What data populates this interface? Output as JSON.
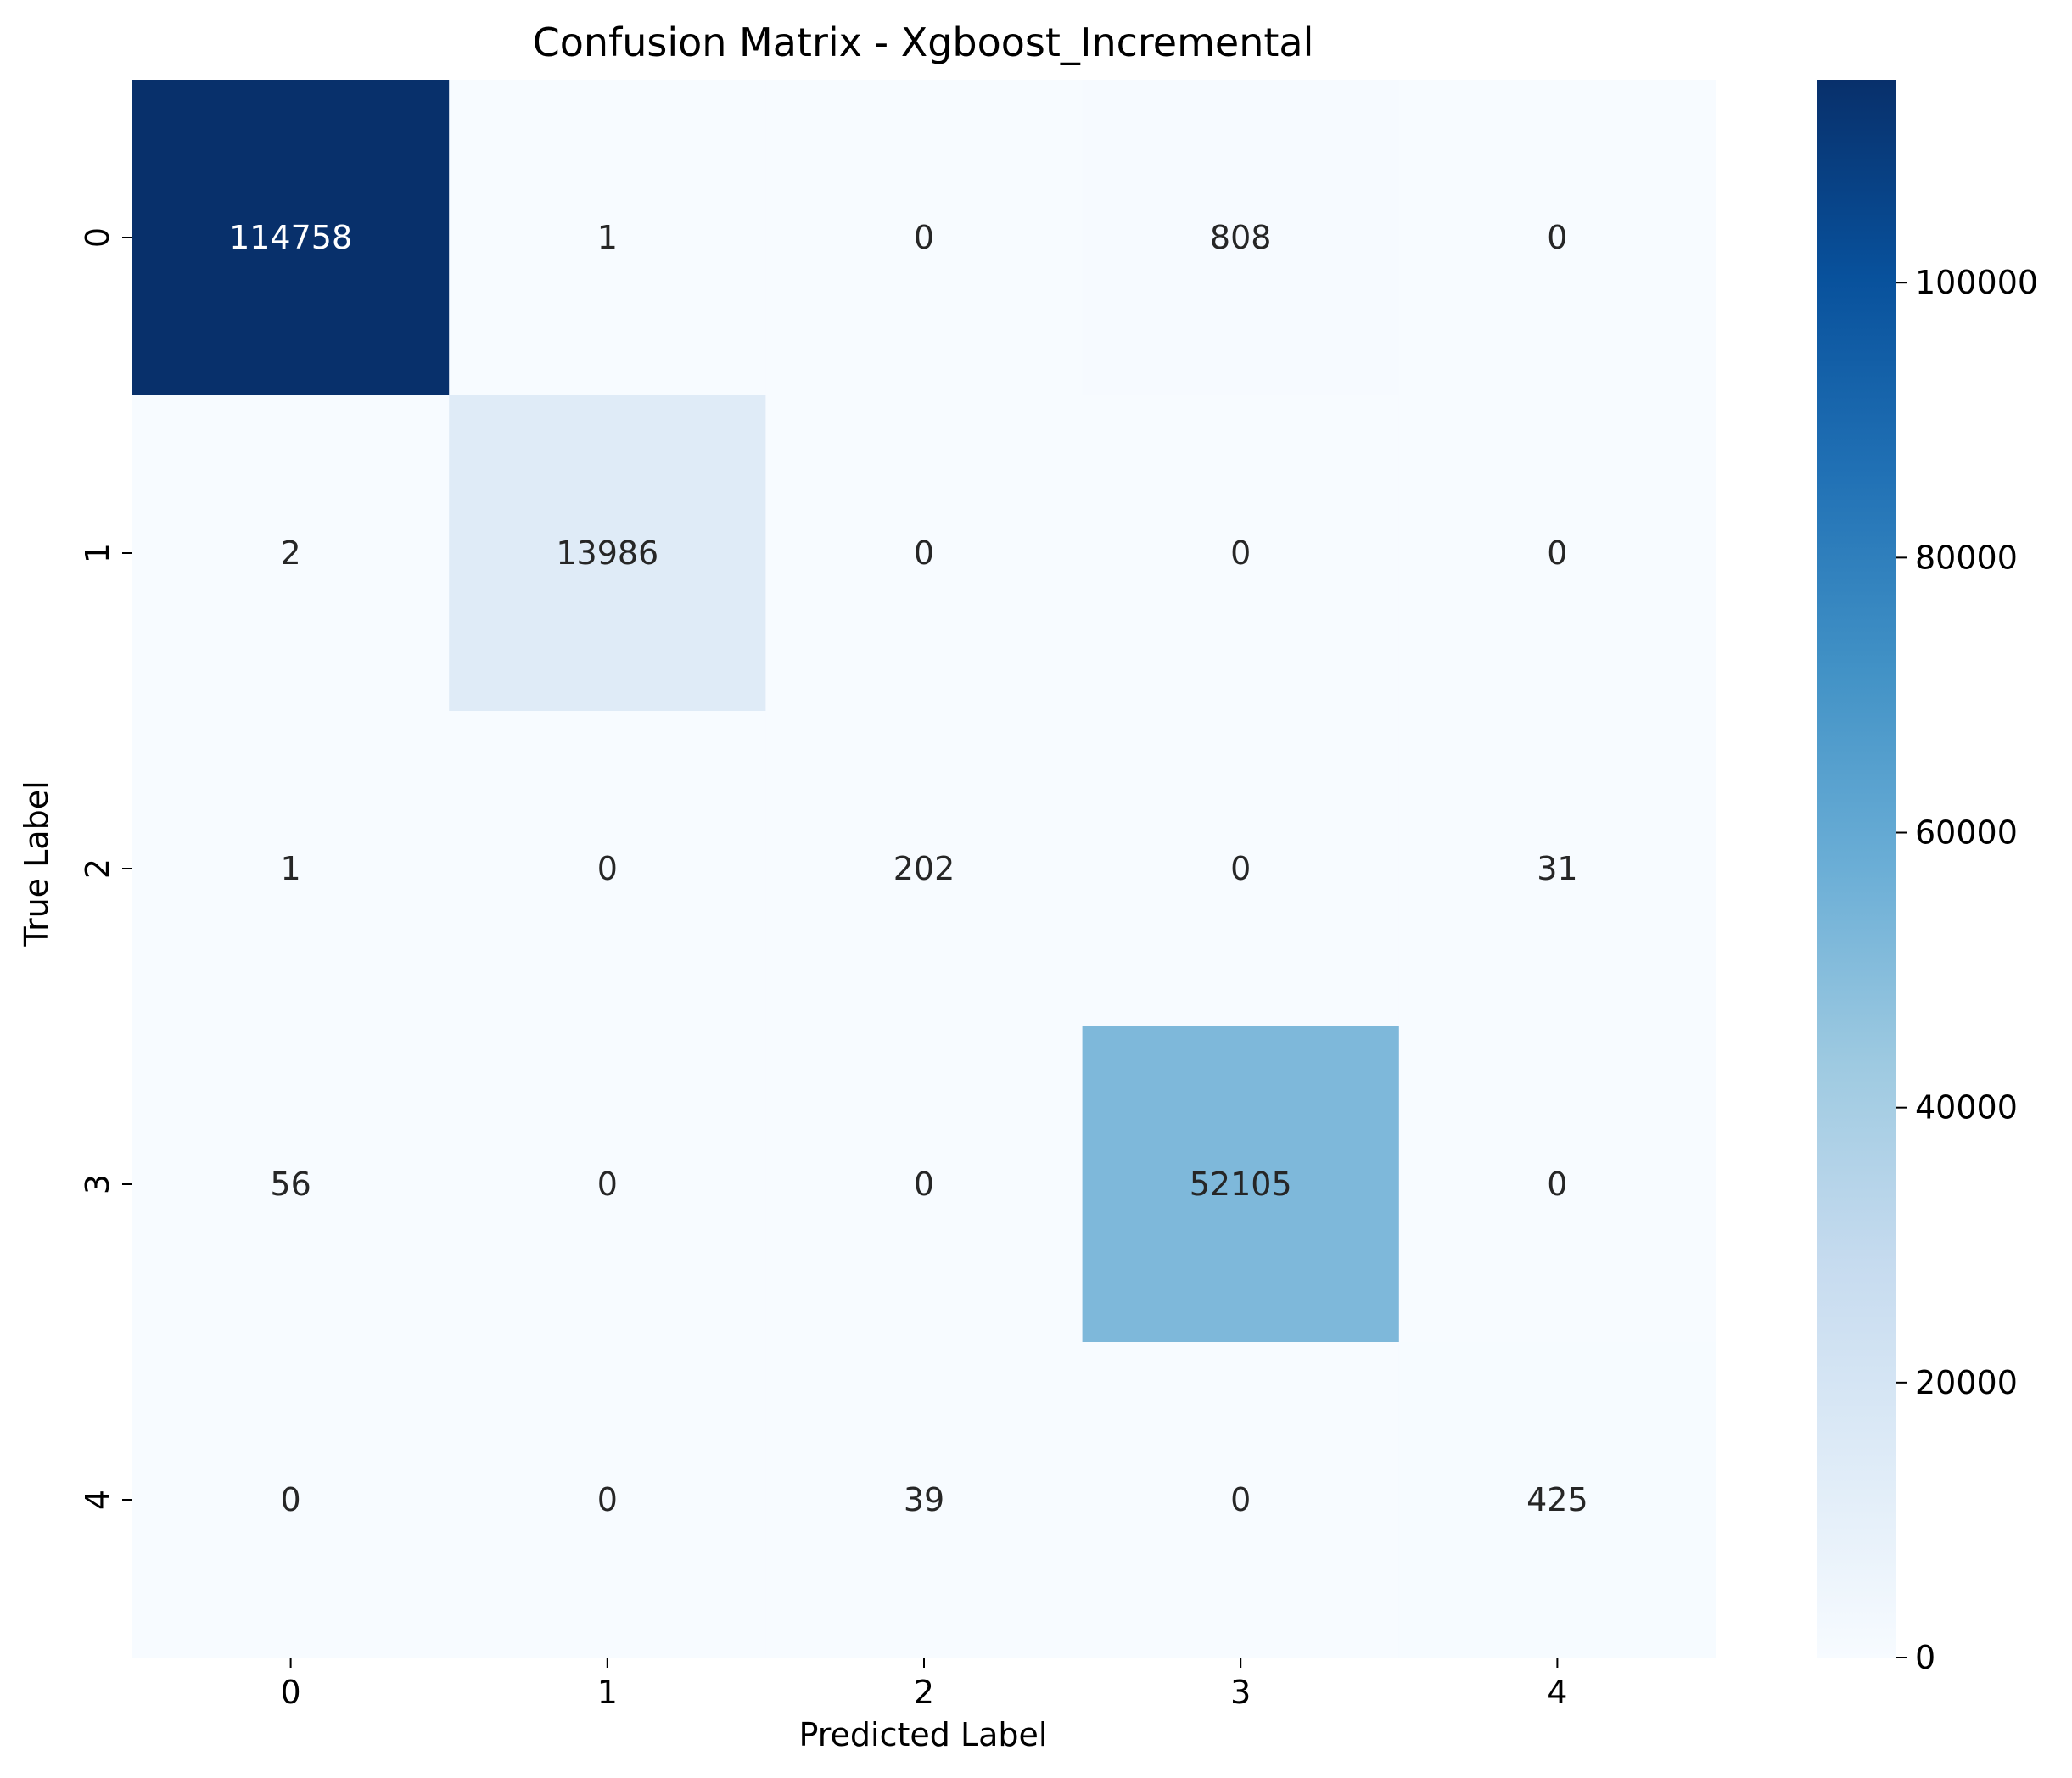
{
  "chart_data": {
    "type": "heatmap",
    "title": "Confusion Matrix - Xgboost_Incremental",
    "xlabel": "Predicted Label",
    "ylabel": "True Label",
    "x_categories": [
      "0",
      "1",
      "2",
      "3",
      "4"
    ],
    "y_categories": [
      "0",
      "1",
      "2",
      "3",
      "4"
    ],
    "matrix": [
      [
        114758,
        1,
        0,
        808,
        0
      ],
      [
        2,
        13986,
        0,
        0,
        0
      ],
      [
        1,
        0,
        202,
        0,
        31
      ],
      [
        56,
        0,
        0,
        52105,
        0
      ],
      [
        0,
        0,
        39,
        0,
        425
      ]
    ],
    "colormap": "Blues",
    "colorbar": {
      "range": [
        0,
        114758
      ],
      "ticks": [
        0,
        20000,
        40000,
        60000,
        80000,
        100000
      ],
      "tick_labels": [
        "0",
        "20000",
        "40000",
        "60000",
        "80000",
        "100000"
      ]
    },
    "colors": {
      "low": "#f7fbff",
      "high": "#08306b",
      "text_dark": "#262626",
      "text_light": "#ffffff"
    }
  }
}
